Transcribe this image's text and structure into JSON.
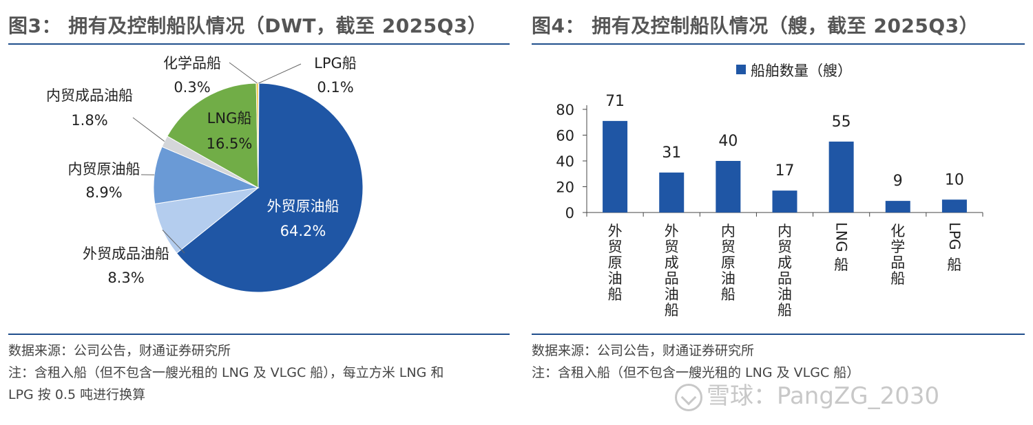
{
  "left": {
    "title": "图3：  拥有及控制船队情况（DWT，截至 2025Q3）",
    "source": "数据来源：公司公告，财通证券研究所",
    "note_line1": "注：含租入船（但不包含一艘光租的 LNG 及 VLGC 船），每立方米 LNG 和",
    "note_line2": "LPG 按 0.5 吨进行换算"
  },
  "right": {
    "title": "图4：  拥有及控制船队情况（艘，截至 2025Q3）",
    "source": "数据来源：公司公告，财通证券研究所",
    "note_line1": "注：含租入船（但不包含一艘光租的 LNG 及 VLGC 船）"
  },
  "watermark": {
    "text": "雪球：PangZG_2030"
  },
  "colors": {
    "foreign_crude": "#1f56a5",
    "foreign_product": "#b4cdee",
    "domestic_crude": "#6a9ad6",
    "domestic_product": "#d4d6d9",
    "lng": "#71ad47",
    "chemical": "#f2c230",
    "lpg": "#7f7f7f",
    "bar": "#1f56a5"
  },
  "chart_data": [
    {
      "type": "pie",
      "title": "图3：拥有及控制船队情况（DWT，截至 2025Q3）",
      "slices": [
        {
          "name": "LPG船",
          "value": 0.1,
          "label": "0.1%",
          "color_key": "lpg"
        },
        {
          "name": "外贸原油船",
          "value": 64.2,
          "label": "64.2%",
          "color_key": "foreign_crude"
        },
        {
          "name": "外贸成品油船",
          "value": 8.3,
          "label": "8.3%",
          "color_key": "foreign_product"
        },
        {
          "name": "内贸原油船",
          "value": 8.9,
          "label": "8.9%",
          "color_key": "domestic_crude"
        },
        {
          "name": "内贸成品油船",
          "value": 1.8,
          "label": "1.8%",
          "color_key": "domestic_product"
        },
        {
          "name": "LNG船",
          "value": 16.5,
          "label": "16.5%",
          "color_key": "lng"
        },
        {
          "name": "化学品船",
          "value": 0.3,
          "label": "0.3%",
          "color_key": "chemical"
        }
      ]
    },
    {
      "type": "bar",
      "title": "图4：拥有及控制船队情况（艘，截至 2025Q3）",
      "legend": "船舶数量（艘）",
      "categories": [
        "外贸原油船",
        "外贸成品油船",
        "内贸原油船",
        "内贸成品油船",
        "LNG船",
        "化学品船",
        "LPG船"
      ],
      "values": [
        71,
        31,
        40,
        17,
        55,
        9,
        10
      ],
      "yticks": [
        "0",
        "20",
        "40",
        "60",
        "80"
      ],
      "ylim": [
        0,
        80
      ]
    }
  ]
}
